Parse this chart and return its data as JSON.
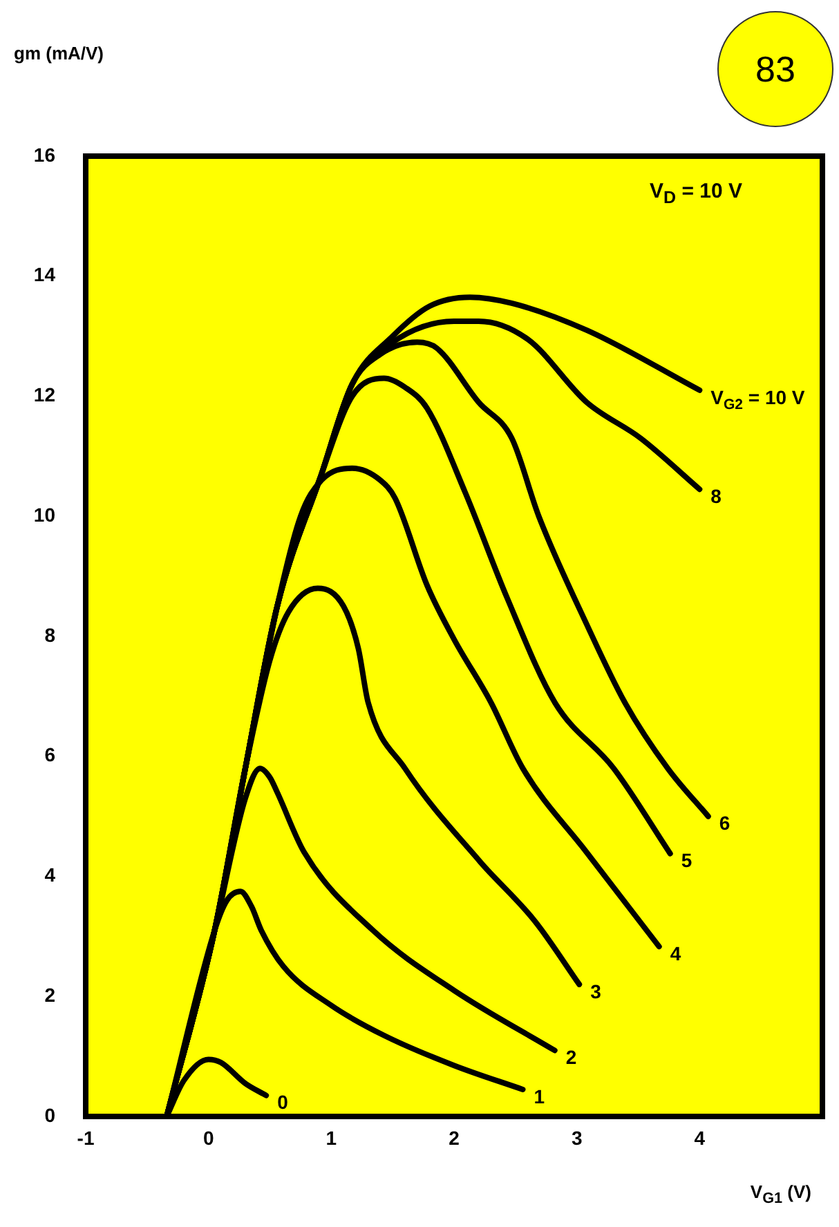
{
  "chart_data": {
    "type": "line",
    "ylabel": "gm (mA/V)",
    "xlabel": "V$_{G1}$ (V)",
    "annotations": [
      "83",
      "V$_{D}$ = 10 V"
    ],
    "xlim": [
      -1,
      5
    ],
    "xticks": [
      -1,
      0,
      1,
      2,
      3,
      4
    ],
    "ylim": [
      0,
      16
    ],
    "yticks": [
      0,
      2,
      4,
      6,
      8,
      10,
      12,
      14,
      16
    ],
    "grid": false,
    "legend": false,
    "marker": "none",
    "series": [
      {
        "name": "0",
        "color": "#000000",
        "x": [
          -0.34,
          -0.2,
          0,
          0.1,
          0.3,
          0.47
        ],
        "values": [
          0,
          0.6,
          0.95,
          0.9,
          0.55,
          0.35
        ]
      },
      {
        "name": "1",
        "color": "#000000",
        "x": [
          -0.34,
          0.05,
          0.15,
          0.26,
          0.35,
          0.43,
          0.61,
          1.0,
          1.43,
          2.0,
          2.56
        ],
        "values": [
          0,
          3.1,
          3.6,
          3.75,
          3.5,
          3.1,
          2.5,
          1.85,
          1.35,
          0.85,
          0.45
        ]
      },
      {
        "name": "2",
        "color": "#000000",
        "x": [
          -0.34,
          0.05,
          0.3,
          0.42,
          0.5,
          0.56,
          0.78,
          1.34,
          2.0,
          2.82
        ],
        "values": [
          0,
          3.1,
          5.3,
          5.8,
          5.65,
          5.4,
          4.4,
          3.1,
          2.1,
          1.1
        ]
      },
      {
        "name": "3",
        "color": "#000000",
        "x": [
          -0.34,
          0.05,
          0.3,
          0.5,
          0.65,
          0.89,
          1.1,
          1.22,
          1.3,
          1.6,
          2.21,
          2.66,
          3.02
        ],
        "values": [
          0,
          3.1,
          5.8,
          7.6,
          8.4,
          8.8,
          8.5,
          7.8,
          6.9,
          5.8,
          4.25,
          3.25,
          2.2
        ]
      },
      {
        "name": "4",
        "color": "#000000",
        "x": [
          -0.34,
          0.05,
          0.3,
          0.56,
          0.75,
          0.92,
          1.17,
          1.4,
          1.52,
          1.78,
          2.0,
          2.3,
          2.56,
          3.08,
          3.67
        ],
        "values": [
          0,
          3.1,
          5.8,
          8.5,
          10.0,
          10.6,
          10.8,
          10.6,
          10.3,
          8.85,
          7.95,
          6.9,
          5.8,
          4.4,
          2.83
        ]
      },
      {
        "name": "5",
        "color": "#000000",
        "x": [
          -0.34,
          0.05,
          0.3,
          0.56,
          0.92,
          1.17,
          1.43,
          1.6,
          1.78,
          2.09,
          2.43,
          2.82,
          3.3,
          3.76
        ],
        "values": [
          0,
          3.1,
          5.8,
          8.5,
          10.7,
          12.0,
          12.3,
          12.15,
          11.8,
          10.4,
          8.65,
          6.9,
          5.8,
          4.38
        ]
      },
      {
        "name": "6",
        "color": "#000000",
        "x": [
          -0.34,
          0.05,
          0.3,
          0.56,
          0.92,
          1.17,
          1.4,
          1.7,
          1.86,
          2.2,
          2.47,
          2.69,
          3.08,
          3.39,
          3.74,
          4.07
        ],
        "values": [
          0,
          3.1,
          5.8,
          8.5,
          10.7,
          12.2,
          12.7,
          12.9,
          12.8,
          11.9,
          11.3,
          10.0,
          8.2,
          6.9,
          5.8,
          5.0
        ]
      },
      {
        "name": "8",
        "color": "#000000",
        "x": [
          -0.34,
          0.05,
          0.3,
          0.56,
          0.92,
          1.17,
          1.5,
          2.0,
          2.2,
          2.6,
          3.08,
          3.52,
          4.0
        ],
        "values": [
          0,
          3.1,
          5.8,
          8.5,
          10.7,
          12.2,
          12.9,
          13.25,
          13.25,
          12.95,
          11.9,
          11.3,
          10.45
        ]
      },
      {
        "name": "V$_{G2}$ = 10 V",
        "color": "#000000",
        "x": [
          -0.34,
          0.05,
          0.3,
          0.56,
          0.92,
          1.17,
          1.5,
          1.8,
          2.13,
          2.47,
          3.08,
          4.0
        ],
        "values": [
          0,
          3.1,
          5.8,
          8.5,
          10.7,
          12.2,
          13.0,
          13.5,
          13.65,
          13.55,
          13.1,
          12.1
        ]
      }
    ]
  }
}
